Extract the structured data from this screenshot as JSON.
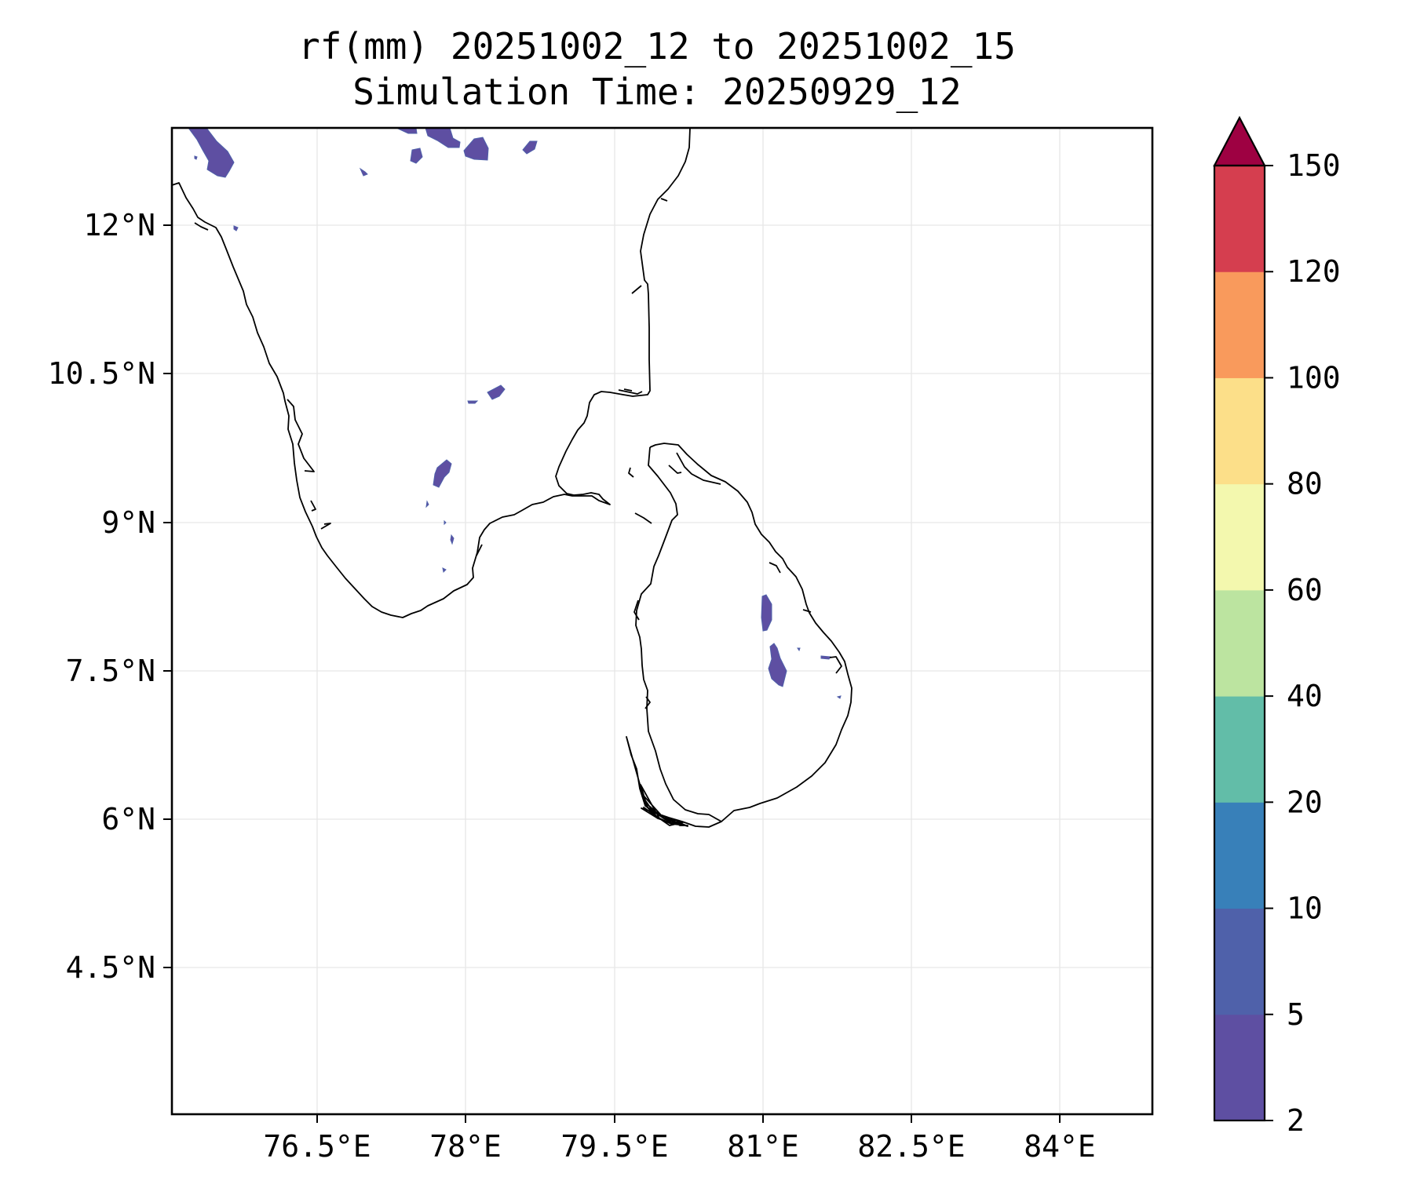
{
  "title": "rf(mm) 20251002_12 to 20251002_15",
  "subtitle": "Simulation Time: 20250929_12",
  "map": {
    "lon_range": [
      75.0,
      84.9
    ],
    "lat_range": [
      3.3,
      13.3
    ],
    "x_ticks": [
      "76.5°E",
      "78°E",
      "79.5°E",
      "81°E",
      "82.5°E",
      "84°E"
    ],
    "x_tick_values": [
      76.5,
      78.0,
      79.5,
      81.0,
      82.5,
      84.0
    ],
    "y_ticks": [
      "12°N",
      "10.5°N",
      "9°N",
      "7.5°N",
      "6°N",
      "4.5°N"
    ],
    "y_tick_values": [
      12.0,
      10.5,
      9.0,
      7.5,
      6.0,
      4.5
    ],
    "grid": true
  },
  "colorbar": {
    "levels": [
      "2",
      "5",
      "10",
      "20",
      "40",
      "60",
      "80",
      "100",
      "120",
      "150"
    ],
    "colors": [
      "#5e4fa2",
      "#4f61aa",
      "#3880b9",
      "#62bda8",
      "#bce4a0",
      "#f3f8ae",
      "#fcdf89",
      "#f99a5c",
      "#d53e4f",
      "#9e0142"
    ],
    "extend": "max"
  },
  "chart_data": {
    "type": "heatmap",
    "title": "rf(mm) 20251002_12 to 20251002_15",
    "subtitle": "Simulation Time: 20250929_12",
    "xlabel": "",
    "ylabel": "",
    "xlim": [
      75.0,
      84.9
    ],
    "ylim": [
      3.3,
      13.3
    ],
    "value_bins": [
      2,
      5,
      10,
      20,
      40,
      60,
      80,
      100,
      120,
      150
    ],
    "rain_cells": [
      {
        "lon": 75.4,
        "lat": 13.0,
        "bin": "2-5"
      },
      {
        "lon": 77.6,
        "lat": 13.1,
        "bin": "2-5"
      },
      {
        "lon": 78.1,
        "lat": 13.0,
        "bin": "5-10"
      },
      {
        "lon": 78.3,
        "lat": 10.4,
        "bin": "2-5"
      },
      {
        "lon": 77.7,
        "lat": 9.6,
        "bin": "2-5"
      },
      {
        "lon": 81.05,
        "lat": 8.0,
        "bin": "2-5"
      },
      {
        "lon": 81.15,
        "lat": 7.5,
        "bin": "2-5"
      }
    ]
  }
}
